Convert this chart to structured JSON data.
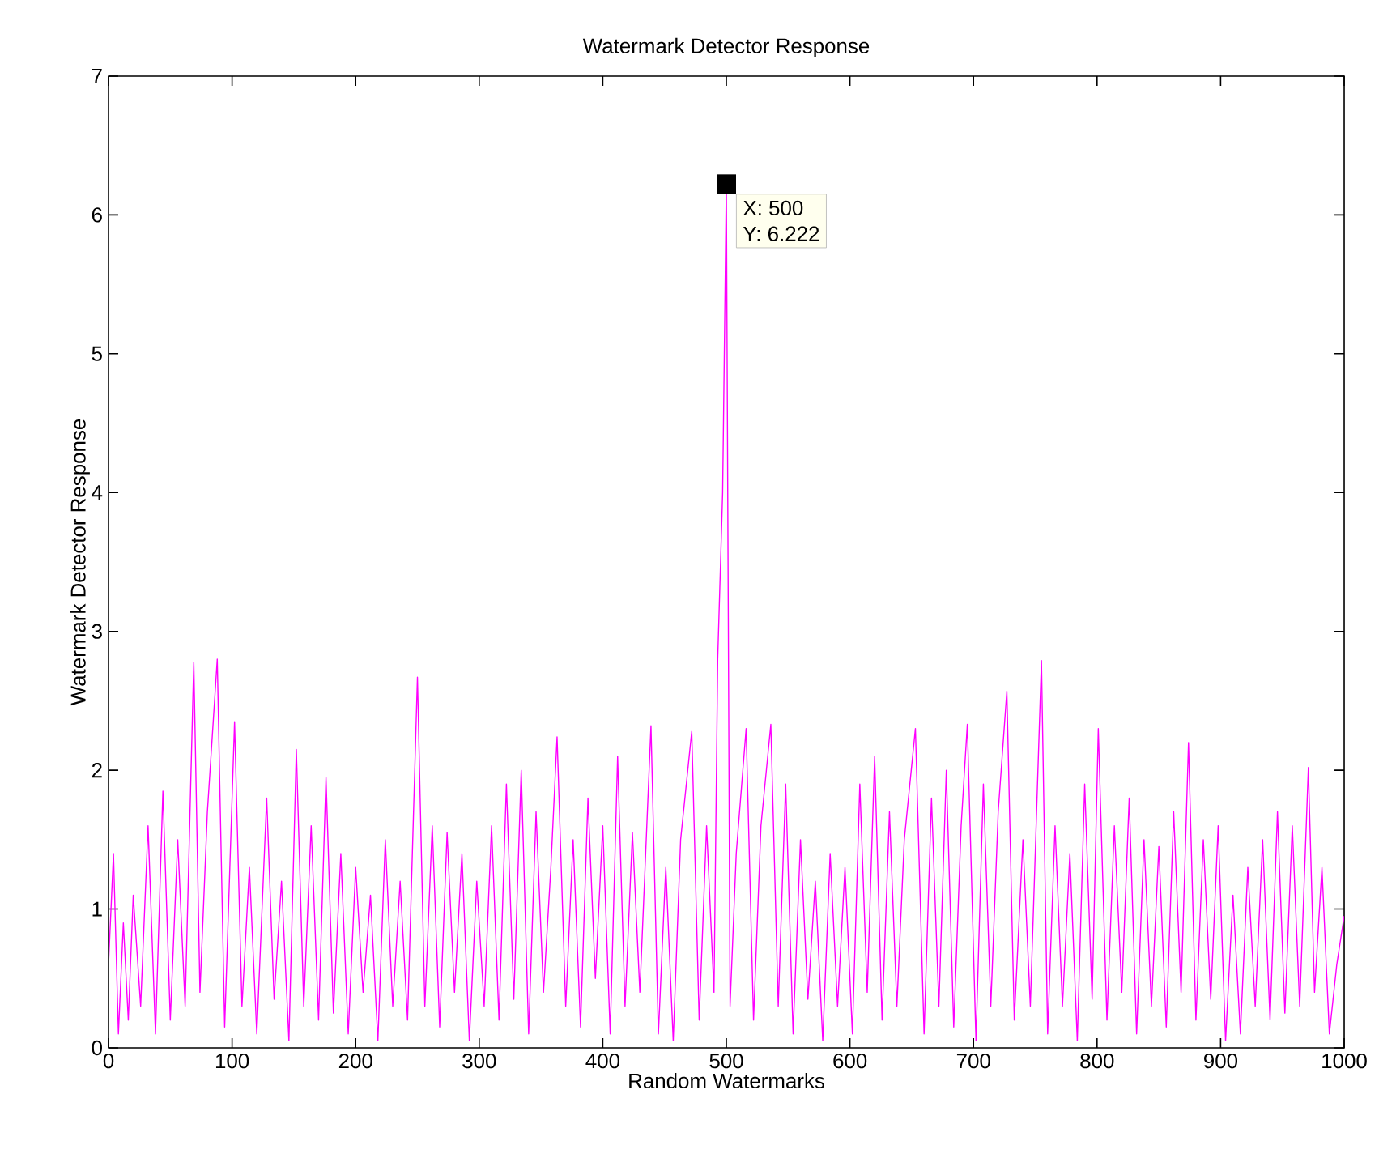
{
  "chart_data": {
    "type": "line",
    "title": "Watermark Detector Response",
    "xlabel": "Random Watermarks",
    "ylabel": "Watermark Detector Response",
    "color": "#ff00ff",
    "xlim": [
      0,
      1000
    ],
    "ylim": [
      0,
      7
    ],
    "xticks": [
      0,
      100,
      200,
      300,
      400,
      500,
      600,
      700,
      800,
      900,
      1000
    ],
    "yticks": [
      0,
      1,
      2,
      3,
      4,
      5,
      6,
      7
    ],
    "annotations": [
      {
        "text": "X: 500",
        "x": 500,
        "y": 6.222
      },
      {
        "text": "Y: 6.222",
        "x": 500,
        "y": 6.222
      }
    ],
    "x": [
      0,
      4,
      8,
      12,
      16,
      20,
      26,
      32,
      38,
      44,
      50,
      56,
      62,
      69,
      74,
      80,
      88,
      94,
      102,
      108,
      114,
      120,
      128,
      134,
      140,
      146,
      152,
      158,
      164,
      170,
      176,
      182,
      188,
      194,
      200,
      206,
      212,
      218,
      224,
      230,
      236,
      242,
      250,
      256,
      262,
      268,
      274,
      280,
      286,
      292,
      298,
      304,
      310,
      316,
      322,
      328,
      334,
      340,
      346,
      352,
      358,
      363,
      370,
      376,
      382,
      388,
      394,
      400,
      406,
      412,
      418,
      424,
      430,
      439,
      445,
      451,
      457,
      463,
      472,
      478,
      484,
      490,
      493,
      497,
      500,
      503,
      508,
      516,
      522,
      528,
      536,
      542,
      548,
      554,
      560,
      566,
      572,
      578,
      584,
      590,
      596,
      602,
      608,
      614,
      620,
      626,
      632,
      638,
      644,
      653,
      660,
      666,
      672,
      678,
      684,
      690,
      695,
      702,
      708,
      714,
      720,
      727,
      733,
      740,
      746,
      755,
      760,
      766,
      772,
      778,
      784,
      790,
      796,
      801,
      808,
      814,
      820,
      826,
      832,
      838,
      844,
      850,
      856,
      862,
      868,
      874,
      880,
      886,
      892,
      898,
      904,
      910,
      916,
      922,
      928,
      934,
      940,
      946,
      952,
      958,
      964,
      971,
      976,
      982,
      988,
      994,
      1000
    ],
    "values": [
      0.6,
      1.4,
      0.1,
      0.9,
      0.2,
      1.1,
      0.3,
      1.6,
      0.1,
      1.85,
      0.2,
      1.5,
      0.3,
      2.78,
      0.4,
      1.7,
      2.8,
      0.15,
      2.35,
      0.3,
      1.3,
      0.1,
      1.8,
      0.35,
      1.2,
      0.05,
      2.15,
      0.3,
      1.6,
      0.2,
      1.95,
      0.25,
      1.4,
      0.1,
      1.3,
      0.4,
      1.1,
      0.05,
      1.5,
      0.3,
      1.2,
      0.2,
      2.67,
      0.3,
      1.6,
      0.15,
      1.55,
      0.4,
      1.4,
      0.05,
      1.2,
      0.3,
      1.6,
      0.2,
      1.9,
      0.35,
      2.0,
      0.1,
      1.7,
      0.4,
      1.3,
      2.24,
      0.3,
      1.5,
      0.15,
      1.8,
      0.5,
      1.6,
      0.1,
      2.1,
      0.3,
      1.55,
      0.4,
      2.32,
      0.1,
      1.3,
      0.05,
      1.5,
      2.28,
      0.2,
      1.6,
      0.4,
      2.8,
      4.0,
      6.222,
      0.3,
      1.4,
      2.3,
      0.2,
      1.6,
      2.33,
      0.3,
      1.9,
      0.1,
      1.5,
      0.35,
      1.2,
      0.05,
      1.4,
      0.3,
      1.3,
      0.1,
      1.9,
      0.4,
      2.1,
      0.2,
      1.7,
      0.3,
      1.5,
      2.3,
      0.1,
      1.8,
      0.3,
      2.0,
      0.15,
      1.6,
      2.33,
      0.05,
      1.9,
      0.3,
      1.7,
      2.57,
      0.2,
      1.5,
      0.3,
      2.79,
      0.1,
      1.6,
      0.3,
      1.4,
      0.05,
      1.9,
      0.35,
      2.3,
      0.2,
      1.6,
      0.4,
      1.8,
      0.1,
      1.5,
      0.3,
      1.45,
      0.15,
      1.7,
      0.4,
      2.2,
      0.2,
      1.5,
      0.35,
      1.6,
      0.05,
      1.1,
      0.1,
      1.3,
      0.3,
      1.5,
      0.2,
      1.7,
      0.25,
      1.6,
      0.3,
      2.02,
      0.4,
      1.3,
      0.1,
      0.6,
      0.95
    ]
  }
}
